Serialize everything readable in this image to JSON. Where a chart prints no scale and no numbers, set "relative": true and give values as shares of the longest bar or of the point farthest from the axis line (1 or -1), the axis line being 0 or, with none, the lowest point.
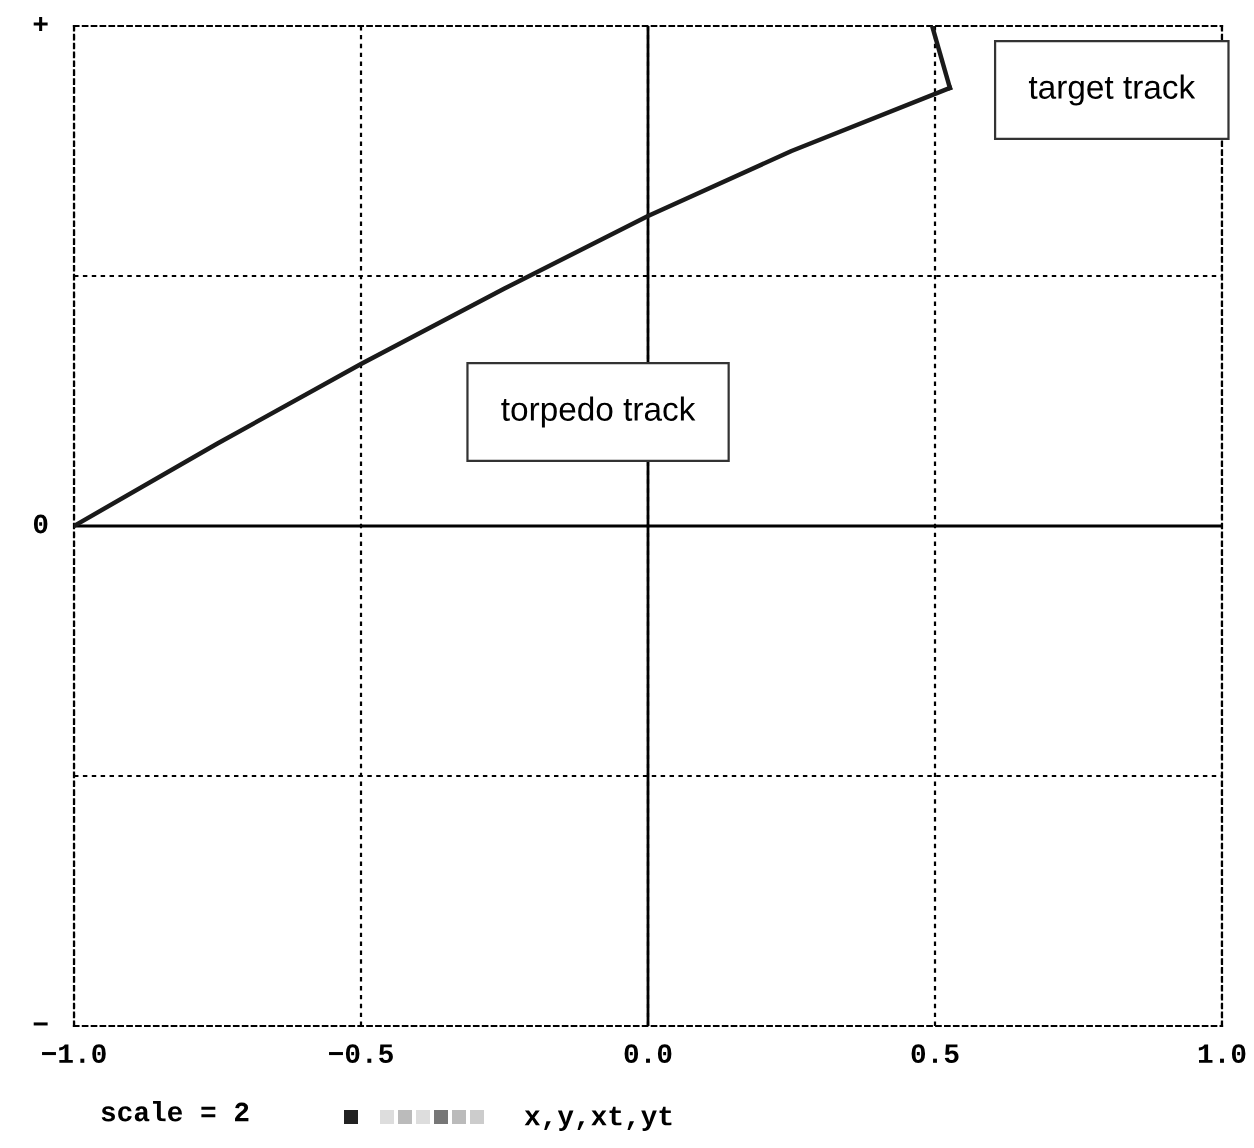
{
  "chart_data": {
    "type": "line",
    "relative": true,
    "series": [
      {
        "color": "#1a1a1a",
        "x": [
          -1.0,
          -0.75,
          -0.5,
          -0.25,
          0.0,
          0.25,
          0.526
        ],
        "values": [
          0.0,
          0.165,
          0.324,
          0.475,
          0.62,
          0.75,
          0.876
        ]
      },
      {
        "color": "#1a1a1a",
        "x": [
          0.495,
          0.526
        ],
        "values": [
          1.0,
          0.876
        ]
      }
    ],
    "xlim": [
      -1.0,
      1.0
    ],
    "xticks": [
      {
        "value": -1.0,
        "label": "−1.0"
      },
      {
        "value": -0.5,
        "label": "−0.5"
      },
      {
        "value": 0.0,
        "label": "0.0"
      },
      {
        "value": 0.5,
        "label": "0.5"
      },
      {
        "value": 1.0,
        "label": "1.0"
      }
    ],
    "grid": true,
    "line_style": "solid",
    "marker": "none",
    "annotations": [
      "torpedo track",
      "target track",
      "+",
      "0",
      "−",
      "scale = 2",
      "x,y,xt,yt"
    ]
  }
}
